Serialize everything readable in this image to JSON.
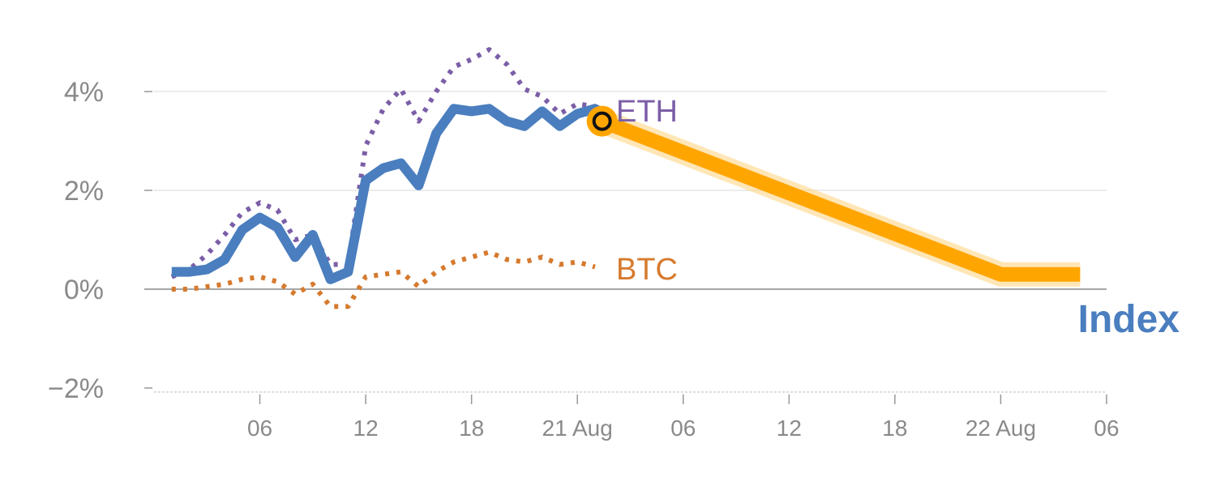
{
  "chart_data": {
    "type": "line",
    "title": "",
    "xlabel": "",
    "ylabel": "",
    "ylim": [
      -2,
      5
    ],
    "grid": true,
    "y_ticks": [
      {
        "value": -2,
        "label": "−2%"
      },
      {
        "value": 0,
        "label": "0%"
      },
      {
        "value": 2,
        "label": "2%"
      },
      {
        "value": 4,
        "label": "4%"
      }
    ],
    "x_ticks": [
      {
        "value": 6,
        "label": "06"
      },
      {
        "value": 12,
        "label": "12"
      },
      {
        "value": 18,
        "label": "18"
      },
      {
        "value": 24,
        "label": "21 Aug"
      },
      {
        "value": 30,
        "label": "06"
      },
      {
        "value": 36,
        "label": "12"
      },
      {
        "value": 42,
        "label": "18"
      },
      {
        "value": 48,
        "label": "22 Aug"
      },
      {
        "value": 54,
        "label": "06"
      }
    ],
    "xlim": [
      0,
      54
    ],
    "colors": {
      "index": "#4a7ebf",
      "eth": "#7b5ea7",
      "btc": "#d67a2e",
      "forecast": "#ffa500",
      "zero_line": "#888888",
      "grid": "#e6e6e6"
    },
    "series": [
      {
        "key": "index",
        "name": "Index",
        "x": [
          1,
          2,
          3,
          4,
          5,
          6,
          7,
          8,
          9,
          10,
          11,
          12,
          13,
          14,
          15,
          16,
          17,
          18,
          19,
          20,
          21,
          22,
          23,
          24,
          25,
          26
        ],
        "y": [
          0.35,
          0.35,
          0.4,
          0.6,
          1.2,
          1.45,
          1.25,
          0.65,
          1.1,
          0.2,
          0.35,
          2.2,
          2.45,
          2.55,
          2.1,
          3.15,
          3.65,
          3.6,
          3.65,
          3.4,
          3.3,
          3.6,
          3.3,
          3.55,
          3.65,
          3.45
        ]
      },
      {
        "key": "eth",
        "name": "ETH",
        "x": [
          1,
          2,
          3,
          4,
          5,
          6,
          7,
          8,
          9,
          10,
          11,
          12,
          13,
          14,
          15,
          16,
          17,
          18,
          19,
          20,
          21,
          22,
          23,
          24,
          25
        ],
        "y": [
          0.25,
          0.4,
          0.7,
          1.1,
          1.55,
          1.75,
          1.6,
          1.0,
          1.1,
          0.5,
          0.5,
          2.9,
          3.65,
          4.05,
          3.4,
          4.0,
          4.5,
          4.65,
          4.85,
          4.55,
          4.05,
          3.9,
          3.55,
          3.75,
          3.7
        ]
      },
      {
        "key": "btc",
        "name": "BTC",
        "x": [
          1,
          2,
          3,
          4,
          5,
          6,
          7,
          8,
          9,
          10,
          11,
          12,
          13,
          14,
          15,
          16,
          17,
          18,
          19,
          20,
          21,
          22,
          23,
          24,
          25
        ],
        "y": [
          0.0,
          0.0,
          0.05,
          0.1,
          0.2,
          0.25,
          0.15,
          -0.1,
          0.1,
          -0.35,
          -0.35,
          0.25,
          0.3,
          0.35,
          0.05,
          0.35,
          0.55,
          0.65,
          0.75,
          0.6,
          0.55,
          0.65,
          0.5,
          0.55,
          0.45
        ]
      },
      {
        "key": "forecast",
        "name": "",
        "x": [
          25.4,
          48,
          52.5
        ],
        "y": [
          3.4,
          0.3,
          0.3
        ]
      }
    ],
    "marker": {
      "x": 25.4,
      "y": 3.4
    },
    "labels": {
      "eth": "ETH",
      "btc": "BTC",
      "index": "Index"
    }
  }
}
